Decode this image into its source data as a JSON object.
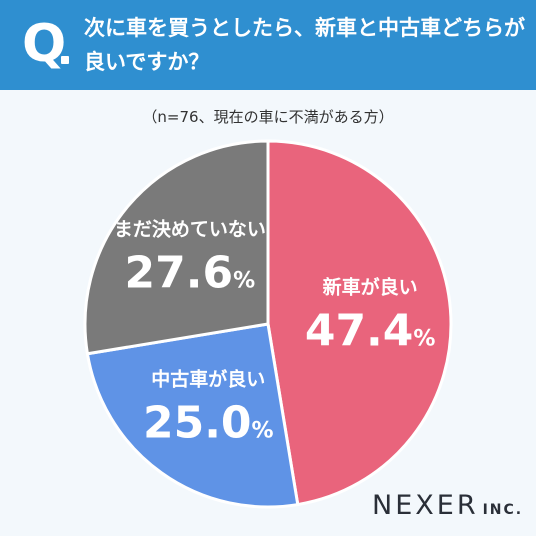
{
  "question": {
    "mark": "Q",
    "line1": "次に車を買うとしたら、新車と中古車どちらが",
    "line2": "良いですか？"
  },
  "subtitle": "（n=76、現在の車に不満がある方）",
  "logo": {
    "name": "NEXER",
    "suffix": "INC."
  },
  "colors": {
    "header": "#2f8fd0",
    "new_car": "#e9647c",
    "used_car": "#5f93e6",
    "undecided": "#7a7a7a"
  },
  "chart_data": {
    "type": "pie",
    "unit": "%",
    "slices": [
      {
        "name": "新車が良い",
        "value": 47.4,
        "label": "47.4",
        "color": "#e9647c"
      },
      {
        "name": "中古車が良い",
        "value": 25.0,
        "label": "25.0",
        "color": "#5f93e6"
      },
      {
        "name": "まだ決めていない",
        "value": 27.6,
        "label": "27.6",
        "color": "#7a7a7a"
      }
    ]
  }
}
